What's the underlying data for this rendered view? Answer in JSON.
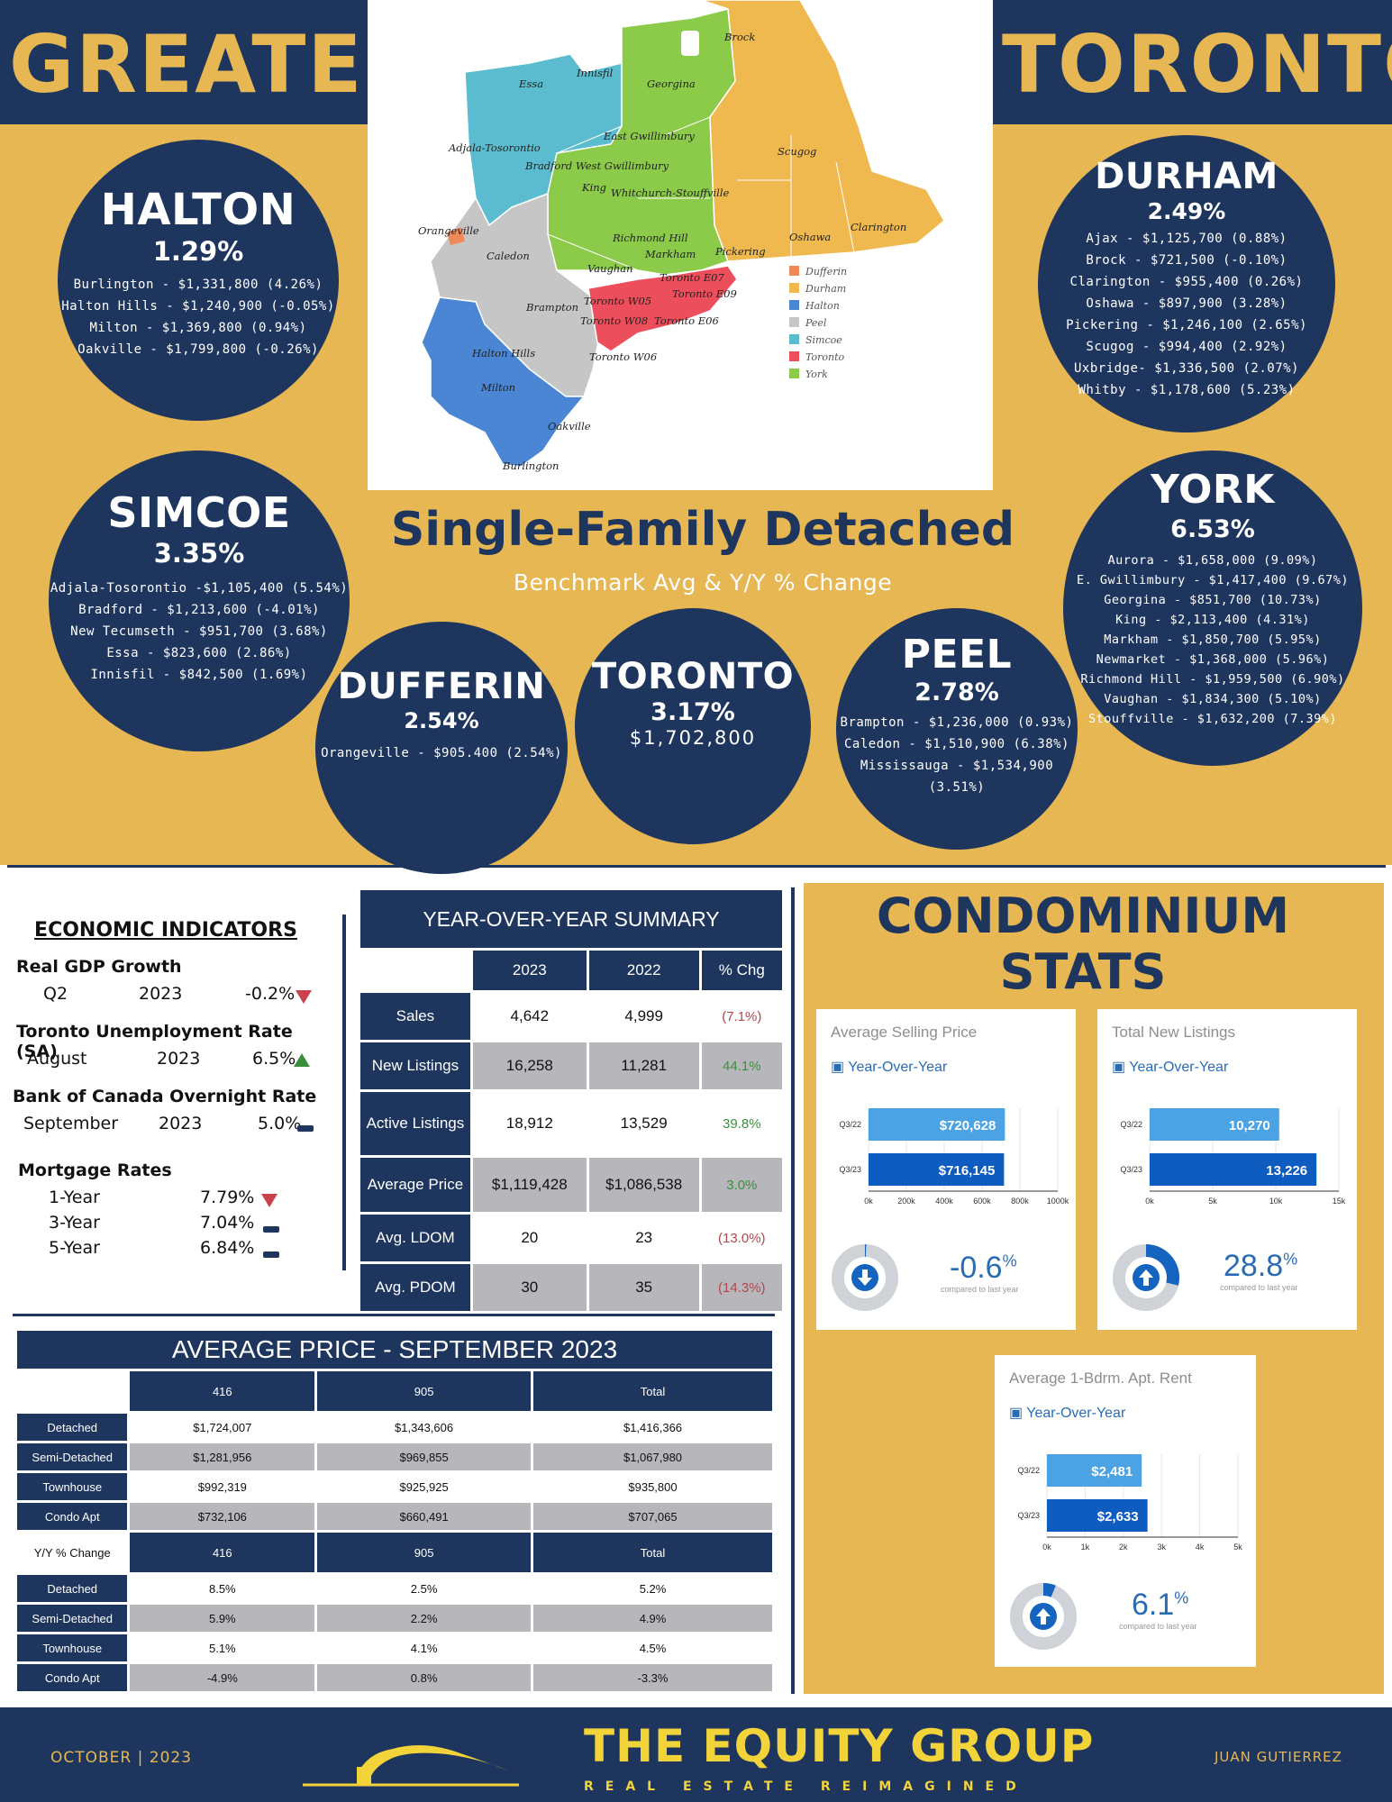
{
  "header": {
    "left_title": "GREATER",
    "right_title": "TORONTO"
  },
  "map": {
    "labels": {
      "brock": "Brock",
      "essa": "Essa",
      "innisfil": "Innisfil",
      "georgina": "Georgina",
      "adjala": "Adjala-Tosorontio",
      "east_gwill": "East Gwillimbury",
      "bradford": "Bradford West Gwillimbury",
      "scugog": "Scugog",
      "king": "King",
      "whitchurch": "Whitchurch-Stouffville",
      "orangeville": "Orangeville",
      "caledon": "Caledon",
      "richmond_hill": "Richmond Hill",
      "markham": "Markham",
      "oshawa": "Oshawa",
      "clarington": "Clarington",
      "pickering": "Pickering",
      "vaughan": "Vaughan",
      "toronto_e07": "Toronto E07",
      "toronto_e09": "Toronto E09",
      "brampton": "Brampton",
      "toronto_w05": "Toronto W05",
      "toronto_w08": "Toronto W08",
      "toronto_e06": "Toronto E06",
      "halton_hills": "Halton Hills",
      "milton": "Milton",
      "toronto_w06": "Toronto W06",
      "oakville": "Oakville",
      "burlington": "Burlington"
    },
    "legend": [
      {
        "label": "Dufferin",
        "color": "#ee8a57"
      },
      {
        "label": "Durham",
        "color": "#efb94f"
      },
      {
        "label": "Halton",
        "color": "#4a86d4"
      },
      {
        "label": "Peel",
        "color": "#c6c6c6"
      },
      {
        "label": "Simcoe",
        "color": "#5bbccf"
      },
      {
        "label": "Toronto",
        "color": "#ed4e5b"
      },
      {
        "label": "York",
        "color": "#8cca4a"
      }
    ]
  },
  "regions": {
    "halton": {
      "name": "HALTON",
      "pct": "1.29%",
      "lines": [
        "Burlington - $1,331,800 (4.26%)",
        "Halton Hills - $1,240,900 (-0.05%)",
        "Milton - $1,369,800 (0.94%)",
        "Oakville - $1,799,800 (-0.26%)"
      ]
    },
    "durham": {
      "name": "DURHAM",
      "pct": "2.49%",
      "lines": [
        "Ajax - $1,125,700 (0.88%)",
        "Brock - $721,500 (-0.10%)",
        "Clarington - $955,400 (0.26%)",
        "Oshawa - $897,900 (3.28%)",
        "Pickering - $1,246,100 (2.65%)",
        "Scugog - $994,400 (2.92%)",
        "Uxbridge- $1,336,500 (2.07%)",
        "Whitby - $1,178,600 (5.23%)"
      ]
    },
    "simcoe": {
      "name": "SIMCOE",
      "pct": "3.35%",
      "lines": [
        "Adjala-Tosorontio -$1,105,400 (5.54%)",
        "Bradford - $1,213,600 (-4.01%)",
        "New Tecumseth - $951,700 (3.68%)",
        "Essa - $823,600 (2.86%)",
        "Innisfil - $842,500 (1.69%)"
      ]
    },
    "york": {
      "name": "YORK",
      "pct": "6.53%",
      "lines": [
        "Aurora - $1,658,000 (9.09%)",
        "E. Gwillimbury - $1,417,400 (9.67%)",
        "Georgina - $851,700 (10.73%)",
        "King - $2,113,400 (4.31%)",
        "Markham - $1,850,700 (5.95%)",
        "Newmarket - $1,368,000 (5.96%)",
        "Richmond Hill - $1,959,500 (6.90%)",
        "Vaughan - $1,834,300 (5.10%)",
        "Stouffville - $1,632,200 (7.39%)"
      ]
    },
    "dufferin": {
      "name": "DUFFERIN",
      "pct": "2.54%",
      "lines": [
        "Orangeville - $905.400 (2.54%)"
      ]
    },
    "toronto": {
      "name": "TORONTO",
      "pct": "3.17%",
      "price": "$1,702,800"
    },
    "peel": {
      "name": "PEEL",
      "pct": "2.78%",
      "lines": [
        "Brampton - $1,236,000 (0.93%)",
        "Caledon - $1,510,900 (6.38%)",
        "Mississauga - $1,534,900",
        "(3.51%)"
      ]
    }
  },
  "sfd": {
    "title": "Single-Family Detached",
    "subtitle": "Benchmark Avg & Y/Y % Change"
  },
  "economic": {
    "heading": "ECONOMIC INDICATORS",
    "gdp": {
      "label": "Real GDP Growth",
      "period": "Q2",
      "year": "2023",
      "value": "-0.2%"
    },
    "unemp": {
      "label": "Toronto Unemployment Rate (SA)",
      "period": "August",
      "year": "2023",
      "value": "6.5%"
    },
    "boc": {
      "label": "Bank of Canada Overnight Rate",
      "period": "September",
      "year": "2023",
      "value": "5.0%"
    },
    "mortgage": {
      "label": "Mortgage Rates",
      "rows": [
        {
          "term": "1-Year",
          "rate": "7.79%"
        },
        {
          "term": "3-Year",
          "rate": "7.04%"
        },
        {
          "term": "5-Year",
          "rate": "6.84%"
        }
      ]
    }
  },
  "yoy_summary": {
    "title": "YEAR-OVER-YEAR SUMMARY",
    "columns": [
      "2023",
      "2022",
      "% Chg"
    ],
    "rows": [
      {
        "label": "Sales",
        "v2023": "4,642",
        "v2022": "4,999",
        "chg": "(7.1%)"
      },
      {
        "label": "New Listings",
        "v2023": "16,258",
        "v2022": "11,281",
        "chg": "44.1%"
      },
      {
        "label": "Active Listings",
        "v2023": "18,912",
        "v2022": "13,529",
        "chg": "39.8%"
      },
      {
        "label": "Average Price",
        "v2023": "$1,119,428",
        "v2022": "$1,086,538",
        "chg": "3.0%"
      },
      {
        "label": "Avg. LDOM",
        "v2023": "20",
        "v2022": "23",
        "chg": "(13.0%)"
      },
      {
        "label": "Avg. PDOM",
        "v2023": "30",
        "v2022": "35",
        "chg": "(14.3%)"
      }
    ]
  },
  "avg_price": {
    "title": "AVERAGE PRICE - SEPTEMBER 2023",
    "columns": [
      "416",
      "905",
      "Total"
    ],
    "rows": [
      {
        "label": "Detached",
        "a": "$1,724,007",
        "b": "$1,343,606",
        "t": "$1,416,366"
      },
      {
        "label": "Semi-Detached",
        "a": "$1,281,956",
        "b": "$969,855",
        "t": "$1,067,980"
      },
      {
        "label": "Townhouse",
        "a": "$992,319",
        "b": "$925,925",
        "t": "$935,800"
      },
      {
        "label": "Condo Apt",
        "a": "$732,106",
        "b": "$660,491",
        "t": "$707,065"
      }
    ],
    "yy_label": "Y/Y % Change",
    "yy_rows": [
      {
        "label": "Detached",
        "a": "8.5%",
        "b": "2.5%",
        "t": "5.2%"
      },
      {
        "label": "Semi-Detached",
        "a": "5.9%",
        "b": "2.2%",
        "t": "4.9%"
      },
      {
        "label": "Townhouse",
        "a": "5.1%",
        "b": "4.1%",
        "t": "4.5%"
      },
      {
        "label": "Condo Apt",
        "a": "-4.9%",
        "b": "0.8%",
        "t": "-3.3%"
      }
    ]
  },
  "condo": {
    "title_line1": "CONDOMINIUM",
    "title_line2": "STATS",
    "yoy_label": "Year-Over-Year",
    "compared": "compared to last year",
    "cards": {
      "asp": {
        "title": "Average Selling Price",
        "pct": "-0.6",
        "pct_sign": "%",
        "arrow": "down",
        "gauge_fraction": 0.006,
        "bars": [
          {
            "label": "Q3/22",
            "value": 720628,
            "text": "$720,628"
          },
          {
            "label": "Q3/23",
            "value": 716145,
            "text": "$716,145"
          }
        ],
        "ticks": [
          "0k",
          "200k",
          "400k",
          "600k",
          "800k",
          "1000k"
        ],
        "max": 1000000
      },
      "tnl": {
        "title": "Total New Listings",
        "pct": "28.8",
        "pct_sign": "%",
        "arrow": "up",
        "gauge_fraction": 0.288,
        "bars": [
          {
            "label": "Q3/22",
            "value": 10270,
            "text": "10,270"
          },
          {
            "label": "Q3/23",
            "value": 13226,
            "text": "13,226"
          }
        ],
        "ticks": [
          "0k",
          "5k",
          "10k",
          "15k"
        ],
        "max": 15000
      },
      "rent": {
        "title": "Average 1-Bdrm. Apt. Rent",
        "pct": "6.1",
        "pct_sign": "%",
        "arrow": "up",
        "gauge_fraction": 0.061,
        "bars": [
          {
            "label": "Q3/22",
            "value": 2481,
            "text": "$2,481"
          },
          {
            "label": "Q3/23",
            "value": 2633,
            "text": "$2,633"
          }
        ],
        "ticks": [
          "0k",
          "1k",
          "2k",
          "3k",
          "4k",
          "5k"
        ],
        "max": 5000
      }
    }
  },
  "footer": {
    "date": "OCTOBER | 2023",
    "brand": "THE EQUITY GROUP",
    "tagline": "REAL ESTATE REIMAGINED",
    "agent": "JUAN GUTIERREZ"
  },
  "colors": {
    "navy": "#1e355e",
    "gold": "#e6b752",
    "bar_light": "#4ba3e3",
    "bar_dark": "#0f5cc0"
  }
}
